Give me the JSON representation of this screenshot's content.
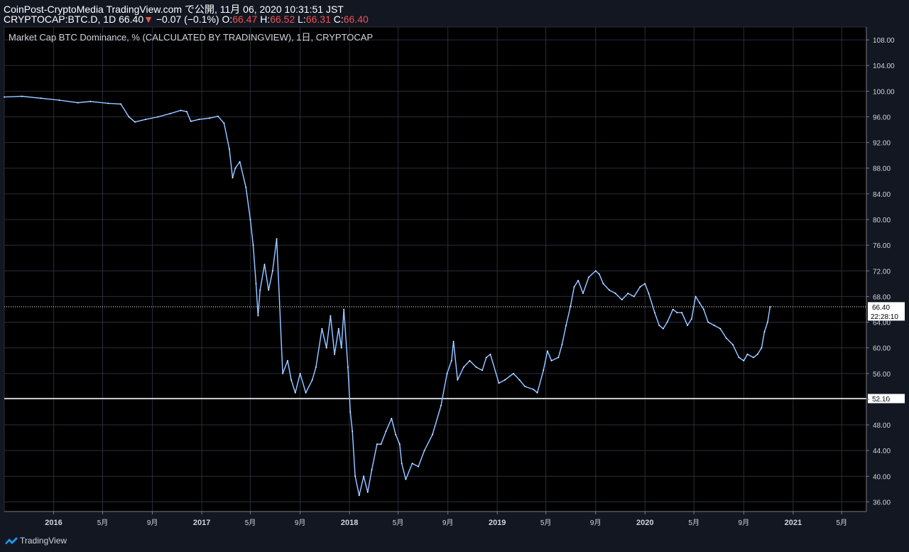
{
  "header": {
    "publisher_line": "CoinPost-CryptoMedia TradingView.com で公開, 11月 06, 2020 10:31:51 JST",
    "symbol_line": {
      "symbol": "CRYPTOCAP:BTC.D, 1D 66.40",
      "arrow": "▼",
      "change": "−0.07 (−0.1%)",
      "o_label": "O:",
      "o_val": "66.47",
      "h_label": "H:",
      "h_val": "66.52",
      "l_label": "L:",
      "l_val": "66.31",
      "c_label": "C:",
      "c_val": "66.40"
    }
  },
  "footer": {
    "brand": "TradingView"
  },
  "colors": {
    "background": "#131722",
    "grid": "#2a2e39",
    "line": "#5b9cf6",
    "highlight": "#ffffff",
    "down": "#ef5350"
  },
  "chart_data": {
    "type": "line",
    "title": "Market Cap BTC Dominance, % (CALCULATED BY TRADINGVIEW), 1日, CRYPTOCAP",
    "ylim": [
      34.5,
      110.0
    ],
    "xlim": [
      "2015-09-01",
      "2021-07-01"
    ],
    "yticks": [
      36,
      40,
      44,
      48,
      52,
      56,
      60,
      64,
      68,
      72,
      76,
      80,
      84,
      88,
      92,
      96,
      100,
      104,
      108
    ],
    "ytick_labels": [
      "36.00",
      "40.00",
      "44.00",
      "48.00",
      "52.00",
      "56.00",
      "60.00",
      "64.00",
      "68.00",
      "72.00",
      "76.00",
      "80.00",
      "84.00",
      "88.00",
      "92.00",
      "96.00",
      "100.00",
      "104.00",
      "108.00"
    ],
    "xticks": [
      {
        "date": "2016-01-01",
        "label": "2016",
        "bold": true
      },
      {
        "date": "2016-05-01",
        "label": "5月"
      },
      {
        "date": "2016-09-01",
        "label": "9月"
      },
      {
        "date": "2017-01-01",
        "label": "2017",
        "bold": true
      },
      {
        "date": "2017-05-01",
        "label": "5月"
      },
      {
        "date": "2017-09-01",
        "label": "9月"
      },
      {
        "date": "2018-01-01",
        "label": "2018",
        "bold": true
      },
      {
        "date": "2018-05-01",
        "label": "5月"
      },
      {
        "date": "2018-09-01",
        "label": "9月"
      },
      {
        "date": "2019-01-01",
        "label": "2019",
        "bold": true
      },
      {
        "date": "2019-05-01",
        "label": "5月"
      },
      {
        "date": "2019-09-01",
        "label": "9月"
      },
      {
        "date": "2020-01-01",
        "label": "2020",
        "bold": true
      },
      {
        "date": "2020-05-01",
        "label": "5月"
      },
      {
        "date": "2020-09-01",
        "label": "9月"
      },
      {
        "date": "2021-01-01",
        "label": "2021",
        "bold": true
      },
      {
        "date": "2021-05-01",
        "label": "5月"
      }
    ],
    "hlines": [
      {
        "value": 66.4,
        "style": "dotted",
        "label": "66.40",
        "sublabel": "22:28:10"
      },
      {
        "value": 52.1,
        "style": "solid",
        "label": "52.10"
      }
    ],
    "series": [
      {
        "values": [
          [
            "2015-09-01",
            99.1
          ],
          [
            "2015-10-15",
            99.2
          ],
          [
            "2015-12-01",
            98.9
          ],
          [
            "2016-01-15",
            98.6
          ],
          [
            "2016-03-01",
            98.2
          ],
          [
            "2016-04-01",
            98.4
          ],
          [
            "2016-05-15",
            98.1
          ],
          [
            "2016-06-15",
            98.0
          ],
          [
            "2016-07-05",
            96.0
          ],
          [
            "2016-07-20",
            95.2
          ],
          [
            "2016-08-15",
            95.6
          ],
          [
            "2016-09-15",
            96.0
          ],
          [
            "2016-10-15",
            96.5
          ],
          [
            "2016-11-10",
            97.0
          ],
          [
            "2016-11-25",
            96.8
          ],
          [
            "2016-12-05",
            95.3
          ],
          [
            "2016-12-25",
            95.6
          ],
          [
            "2017-01-20",
            95.8
          ],
          [
            "2017-02-10",
            96.1
          ],
          [
            "2017-02-25",
            95.0
          ],
          [
            "2017-03-10",
            91.0
          ],
          [
            "2017-03-18",
            86.5
          ],
          [
            "2017-03-25",
            88.0
          ],
          [
            "2017-04-05",
            89.0
          ],
          [
            "2017-04-20",
            85.0
          ],
          [
            "2017-05-01",
            80.0
          ],
          [
            "2017-05-08",
            76.0
          ],
          [
            "2017-05-15",
            70.0
          ],
          [
            "2017-05-20",
            65.0
          ],
          [
            "2017-05-25",
            69.0
          ],
          [
            "2017-06-05",
            73.0
          ],
          [
            "2017-06-15",
            69.0
          ],
          [
            "2017-06-25",
            72.0
          ],
          [
            "2017-07-05",
            77.0
          ],
          [
            "2017-07-20",
            56.0
          ],
          [
            "2017-08-01",
            58.0
          ],
          [
            "2017-08-10",
            55.0
          ],
          [
            "2017-08-20",
            53.0
          ],
          [
            "2017-09-01",
            56.0
          ],
          [
            "2017-09-15",
            53.0
          ],
          [
            "2017-10-01",
            55.0
          ],
          [
            "2017-10-10",
            57.0
          ],
          [
            "2017-10-25",
            63.0
          ],
          [
            "2017-11-05",
            60.0
          ],
          [
            "2017-11-15",
            65.0
          ],
          [
            "2017-11-25",
            59.0
          ],
          [
            "2017-12-05",
            63.0
          ],
          [
            "2017-12-12",
            60.0
          ],
          [
            "2017-12-18",
            66.0
          ],
          [
            "2017-12-28",
            57.0
          ],
          [
            "2018-01-03",
            50.0
          ],
          [
            "2018-01-08",
            47.0
          ],
          [
            "2018-01-15",
            40.0
          ],
          [
            "2018-01-25",
            37.0
          ],
          [
            "2018-02-05",
            40.0
          ],
          [
            "2018-02-15",
            37.5
          ],
          [
            "2018-02-25",
            41.0
          ],
          [
            "2018-03-10",
            45.0
          ],
          [
            "2018-03-20",
            45.0
          ],
          [
            "2018-04-01",
            47.0
          ],
          [
            "2018-04-15",
            49.0
          ],
          [
            "2018-04-25",
            46.5
          ],
          [
            "2018-05-05",
            45.0
          ],
          [
            "2018-05-10",
            42.0
          ],
          [
            "2018-05-20",
            39.5
          ],
          [
            "2018-06-05",
            42.0
          ],
          [
            "2018-06-20",
            41.5
          ],
          [
            "2018-07-05",
            44.0
          ],
          [
            "2018-07-25",
            46.5
          ],
          [
            "2018-08-15",
            51.0
          ],
          [
            "2018-08-30",
            56.0
          ],
          [
            "2018-09-10",
            58.0
          ],
          [
            "2018-09-15",
            61.0
          ],
          [
            "2018-09-25",
            55.0
          ],
          [
            "2018-10-10",
            57.0
          ],
          [
            "2018-10-25",
            58.0
          ],
          [
            "2018-11-10",
            57.0
          ],
          [
            "2018-11-25",
            56.5
          ],
          [
            "2018-12-05",
            58.5
          ],
          [
            "2018-12-15",
            59.0
          ],
          [
            "2019-01-05",
            54.5
          ],
          [
            "2019-01-20",
            55.0
          ],
          [
            "2019-02-10",
            56.0
          ],
          [
            "2019-02-25",
            55.0
          ],
          [
            "2019-03-10",
            54.0
          ],
          [
            "2019-04-01",
            53.5
          ],
          [
            "2019-04-10",
            53.0
          ],
          [
            "2019-04-25",
            56.5
          ],
          [
            "2019-05-05",
            59.5
          ],
          [
            "2019-05-15",
            58.0
          ],
          [
            "2019-06-01",
            58.5
          ],
          [
            "2019-06-10",
            60.5
          ],
          [
            "2019-06-20",
            63.5
          ],
          [
            "2019-07-01",
            66.5
          ],
          [
            "2019-07-10",
            69.5
          ],
          [
            "2019-07-20",
            70.5
          ],
          [
            "2019-08-01",
            68.5
          ],
          [
            "2019-08-15",
            71.0
          ],
          [
            "2019-09-01",
            72.0
          ],
          [
            "2019-09-10",
            71.5
          ],
          [
            "2019-09-20",
            70.0
          ],
          [
            "2019-10-05",
            69.0
          ],
          [
            "2019-10-20",
            68.5
          ],
          [
            "2019-11-05",
            67.5
          ],
          [
            "2019-11-20",
            68.5
          ],
          [
            "2019-12-05",
            68.0
          ],
          [
            "2019-12-20",
            69.5
          ],
          [
            "2020-01-01",
            70.0
          ],
          [
            "2020-01-10",
            68.5
          ],
          [
            "2020-01-25",
            65.5
          ],
          [
            "2020-02-05",
            63.5
          ],
          [
            "2020-02-15",
            63.0
          ],
          [
            "2020-02-25",
            64.0
          ],
          [
            "2020-03-10",
            66.0
          ],
          [
            "2020-03-20",
            65.5
          ],
          [
            "2020-04-01",
            65.5
          ],
          [
            "2020-04-15",
            63.5
          ],
          [
            "2020-04-25",
            64.5
          ],
          [
            "2020-05-05",
            68.0
          ],
          [
            "2020-05-15",
            67.0
          ],
          [
            "2020-05-25",
            66.0
          ],
          [
            "2020-06-05",
            64.0
          ],
          [
            "2020-06-20",
            63.5
          ],
          [
            "2020-07-05",
            63.0
          ],
          [
            "2020-07-20",
            61.5
          ],
          [
            "2020-08-05",
            60.5
          ],
          [
            "2020-08-20",
            58.5
          ],
          [
            "2020-09-01",
            58.0
          ],
          [
            "2020-09-10",
            59.0
          ],
          [
            "2020-09-25",
            58.5
          ],
          [
            "2020-10-05",
            59.0
          ],
          [
            "2020-10-15",
            60.0
          ],
          [
            "2020-10-22",
            62.5
          ],
          [
            "2020-10-30",
            64.0
          ],
          [
            "2020-11-05",
            66.4
          ]
        ]
      }
    ]
  }
}
